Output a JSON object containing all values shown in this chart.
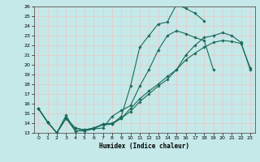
{
  "xlabel": "Humidex (Indice chaleur)",
  "ylabel": "",
  "xlim": [
    -0.5,
    23.5
  ],
  "ylim": [
    13,
    26
  ],
  "xticks": [
    0,
    1,
    2,
    3,
    4,
    5,
    6,
    7,
    8,
    9,
    10,
    11,
    12,
    13,
    14,
    15,
    16,
    17,
    18,
    19,
    20,
    21,
    22,
    23
  ],
  "yticks": [
    13,
    14,
    15,
    16,
    17,
    18,
    19,
    20,
    21,
    22,
    23,
    24,
    25,
    26
  ],
  "bg_color": "#c5e8e8",
  "grid_color": "#e8c8c8",
  "line_color": "#1a6b5a",
  "curves": [
    {
      "x": [
        0,
        1,
        2,
        3,
        4,
        5,
        6,
        7,
        8,
        9,
        10,
        11,
        12,
        13,
        14,
        15,
        16,
        17,
        18
      ],
      "y": [
        15.5,
        14.1,
        13.0,
        14.5,
        13.2,
        13.2,
        13.4,
        13.9,
        13.9,
        14.7,
        17.8,
        21.8,
        23.0,
        24.2,
        24.4,
        26.2,
        25.8,
        25.3,
        24.5
      ]
    },
    {
      "x": [
        0,
        1,
        2,
        3,
        4,
        5,
        6,
        7,
        8,
        9,
        10,
        11,
        12,
        13,
        14,
        15,
        16,
        17,
        18,
        19
      ],
      "y": [
        15.5,
        14.1,
        13.0,
        14.8,
        13.2,
        13.3,
        13.4,
        13.5,
        14.7,
        15.3,
        15.8,
        17.8,
        19.5,
        21.5,
        23.0,
        23.5,
        23.2,
        22.8,
        22.5,
        19.5
      ]
    },
    {
      "x": [
        0,
        1,
        2,
        3,
        4,
        5,
        6,
        7,
        8,
        9,
        10,
        11,
        12,
        13,
        14,
        15,
        16,
        17,
        18,
        19,
        20,
        21,
        22,
        23
      ],
      "y": [
        15.5,
        14.1,
        13.0,
        14.5,
        13.5,
        13.3,
        13.5,
        13.8,
        13.9,
        14.5,
        15.2,
        16.2,
        17.0,
        17.8,
        18.5,
        19.5,
        20.5,
        21.2,
        21.8,
        22.3,
        22.5,
        22.4,
        22.2,
        19.7
      ]
    },
    {
      "x": [
        0,
        1,
        2,
        3,
        4,
        5,
        6,
        7,
        8,
        9,
        10,
        11,
        12,
        13,
        14,
        15,
        16,
        17,
        18,
        19,
        20,
        21,
        22,
        23
      ],
      "y": [
        15.5,
        14.1,
        13.0,
        14.5,
        13.5,
        13.3,
        13.5,
        13.9,
        14.0,
        14.5,
        15.5,
        16.5,
        17.3,
        18.0,
        18.8,
        19.5,
        21.0,
        22.0,
        22.8,
        23.0,
        23.3,
        23.0,
        22.3,
        19.5
      ]
    }
  ]
}
